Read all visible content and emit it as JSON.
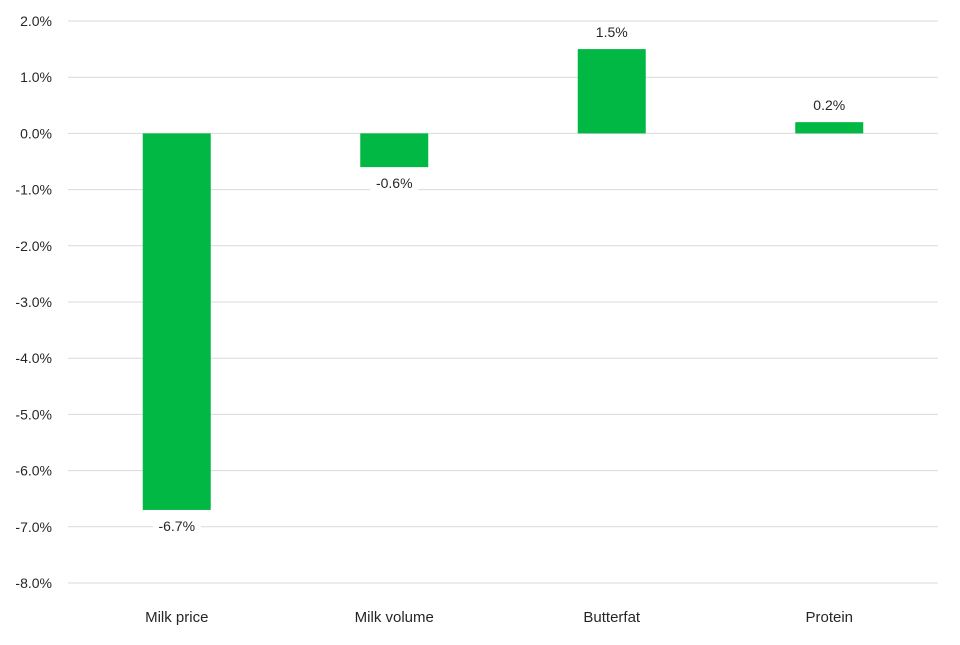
{
  "chart_data": {
    "type": "bar",
    "title": "",
    "xlabel": "",
    "ylabel": "",
    "categories": [
      "Milk price",
      "Milk volume",
      "Butterfat",
      "Protein"
    ],
    "values": [
      -6.7,
      -0.6,
      1.5,
      0.2
    ],
    "data_labels": [
      "-6.7%",
      "-0.6%",
      "1.5%",
      "0.2%"
    ],
    "ylim": [
      -8,
      2
    ],
    "yticks": [
      2,
      1,
      0,
      -1,
      -2,
      -3,
      -4,
      -5,
      -6,
      -7,
      -8
    ],
    "ytick_labels": [
      "2.0%",
      "1.0%",
      "0.0%",
      "-1.0%",
      "-2.0%",
      "-3.0%",
      "-4.0%",
      "-5.0%",
      "-6.0%",
      "-7.0%",
      "-8.0%"
    ],
    "grid": true,
    "legend": "none",
    "bar_color": "#00b843"
  }
}
